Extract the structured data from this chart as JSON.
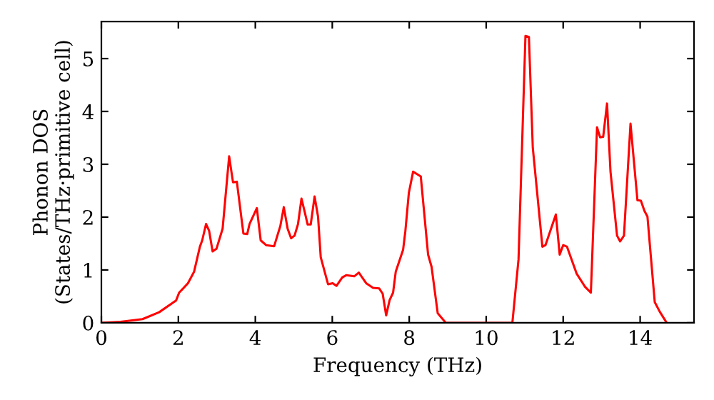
{
  "chart_data": {
    "type": "line",
    "xlabel": "Frequency (THz)",
    "ylabel": "Phonon DOS\n(States/THz·primitive cell)",
    "xlim": [
      0,
      15.4
    ],
    "ylim": [
      0,
      5.7
    ],
    "xticks": [
      0,
      2,
      4,
      6,
      8,
      10,
      12,
      14
    ],
    "yticks": [
      0,
      1,
      2,
      3,
      4,
      5
    ],
    "grid": false,
    "legend": false,
    "marker": "none",
    "line_style": "solid",
    "series": [
      {
        "color": "#ff0000",
        "x": [
          0,
          0.5,
          1.07,
          1.5,
          1.94,
          2.02,
          2.25,
          2.41,
          2.56,
          2.62,
          2.72,
          2.8,
          2.89,
          2.99,
          3.15,
          3.32,
          3.42,
          3.52,
          3.69,
          3.79,
          3.85,
          4.04,
          4.14,
          4.28,
          4.49,
          4.59,
          4.65,
          4.74,
          4.84,
          4.93,
          5.02,
          5.11,
          5.2,
          5.27,
          5.36,
          5.44,
          5.54,
          5.63,
          5.7,
          5.89,
          6.01,
          6.11,
          6.26,
          6.36,
          6.57,
          6.69,
          6.88,
          7.06,
          7.22,
          7.31,
          7.4,
          7.49,
          7.58,
          7.65,
          7.84,
          7.9,
          7.99,
          8.1,
          8.3,
          8.49,
          8.58,
          8.74,
          8.95,
          10.68,
          10.84,
          11.02,
          11.11,
          11.21,
          11.46,
          11.54,
          11.81,
          11.91,
          12.0,
          12.1,
          12.35,
          12.57,
          12.72,
          12.88,
          12.96,
          13.04,
          13.14,
          13.23,
          13.4,
          13.48,
          13.58,
          13.75,
          13.93,
          14.02,
          14.11,
          14.19,
          14.38,
          14.51,
          14.69
        ],
        "values": [
          0,
          0.02,
          0.07,
          0.2,
          0.42,
          0.57,
          0.75,
          0.97,
          1.44,
          1.56,
          1.87,
          1.74,
          1.35,
          1.4,
          1.78,
          3.15,
          2.66,
          2.67,
          1.69,
          1.68,
          1.87,
          2.17,
          1.56,
          1.47,
          1.45,
          1.69,
          1.83,
          2.19,
          1.78,
          1.6,
          1.65,
          1.87,
          2.35,
          2.14,
          1.86,
          1.86,
          2.39,
          2.01,
          1.24,
          0.73,
          0.75,
          0.7,
          0.86,
          0.9,
          0.88,
          0.95,
          0.75,
          0.66,
          0.65,
          0.55,
          0.14,
          0.43,
          0.57,
          0.97,
          1.38,
          1.74,
          2.46,
          2.86,
          2.77,
          1.29,
          1.06,
          0.18,
          0,
          0,
          1.2,
          5.43,
          5.41,
          3.32,
          1.44,
          1.47,
          2.05,
          1.29,
          1.47,
          1.44,
          0.93,
          0.68,
          0.57,
          3.7,
          3.51,
          3.52,
          4.15,
          2.86,
          1.65,
          1.54,
          1.65,
          3.77,
          2.32,
          2.31,
          2.12,
          2.01,
          0.39,
          0.21,
          0
        ]
      }
    ]
  }
}
